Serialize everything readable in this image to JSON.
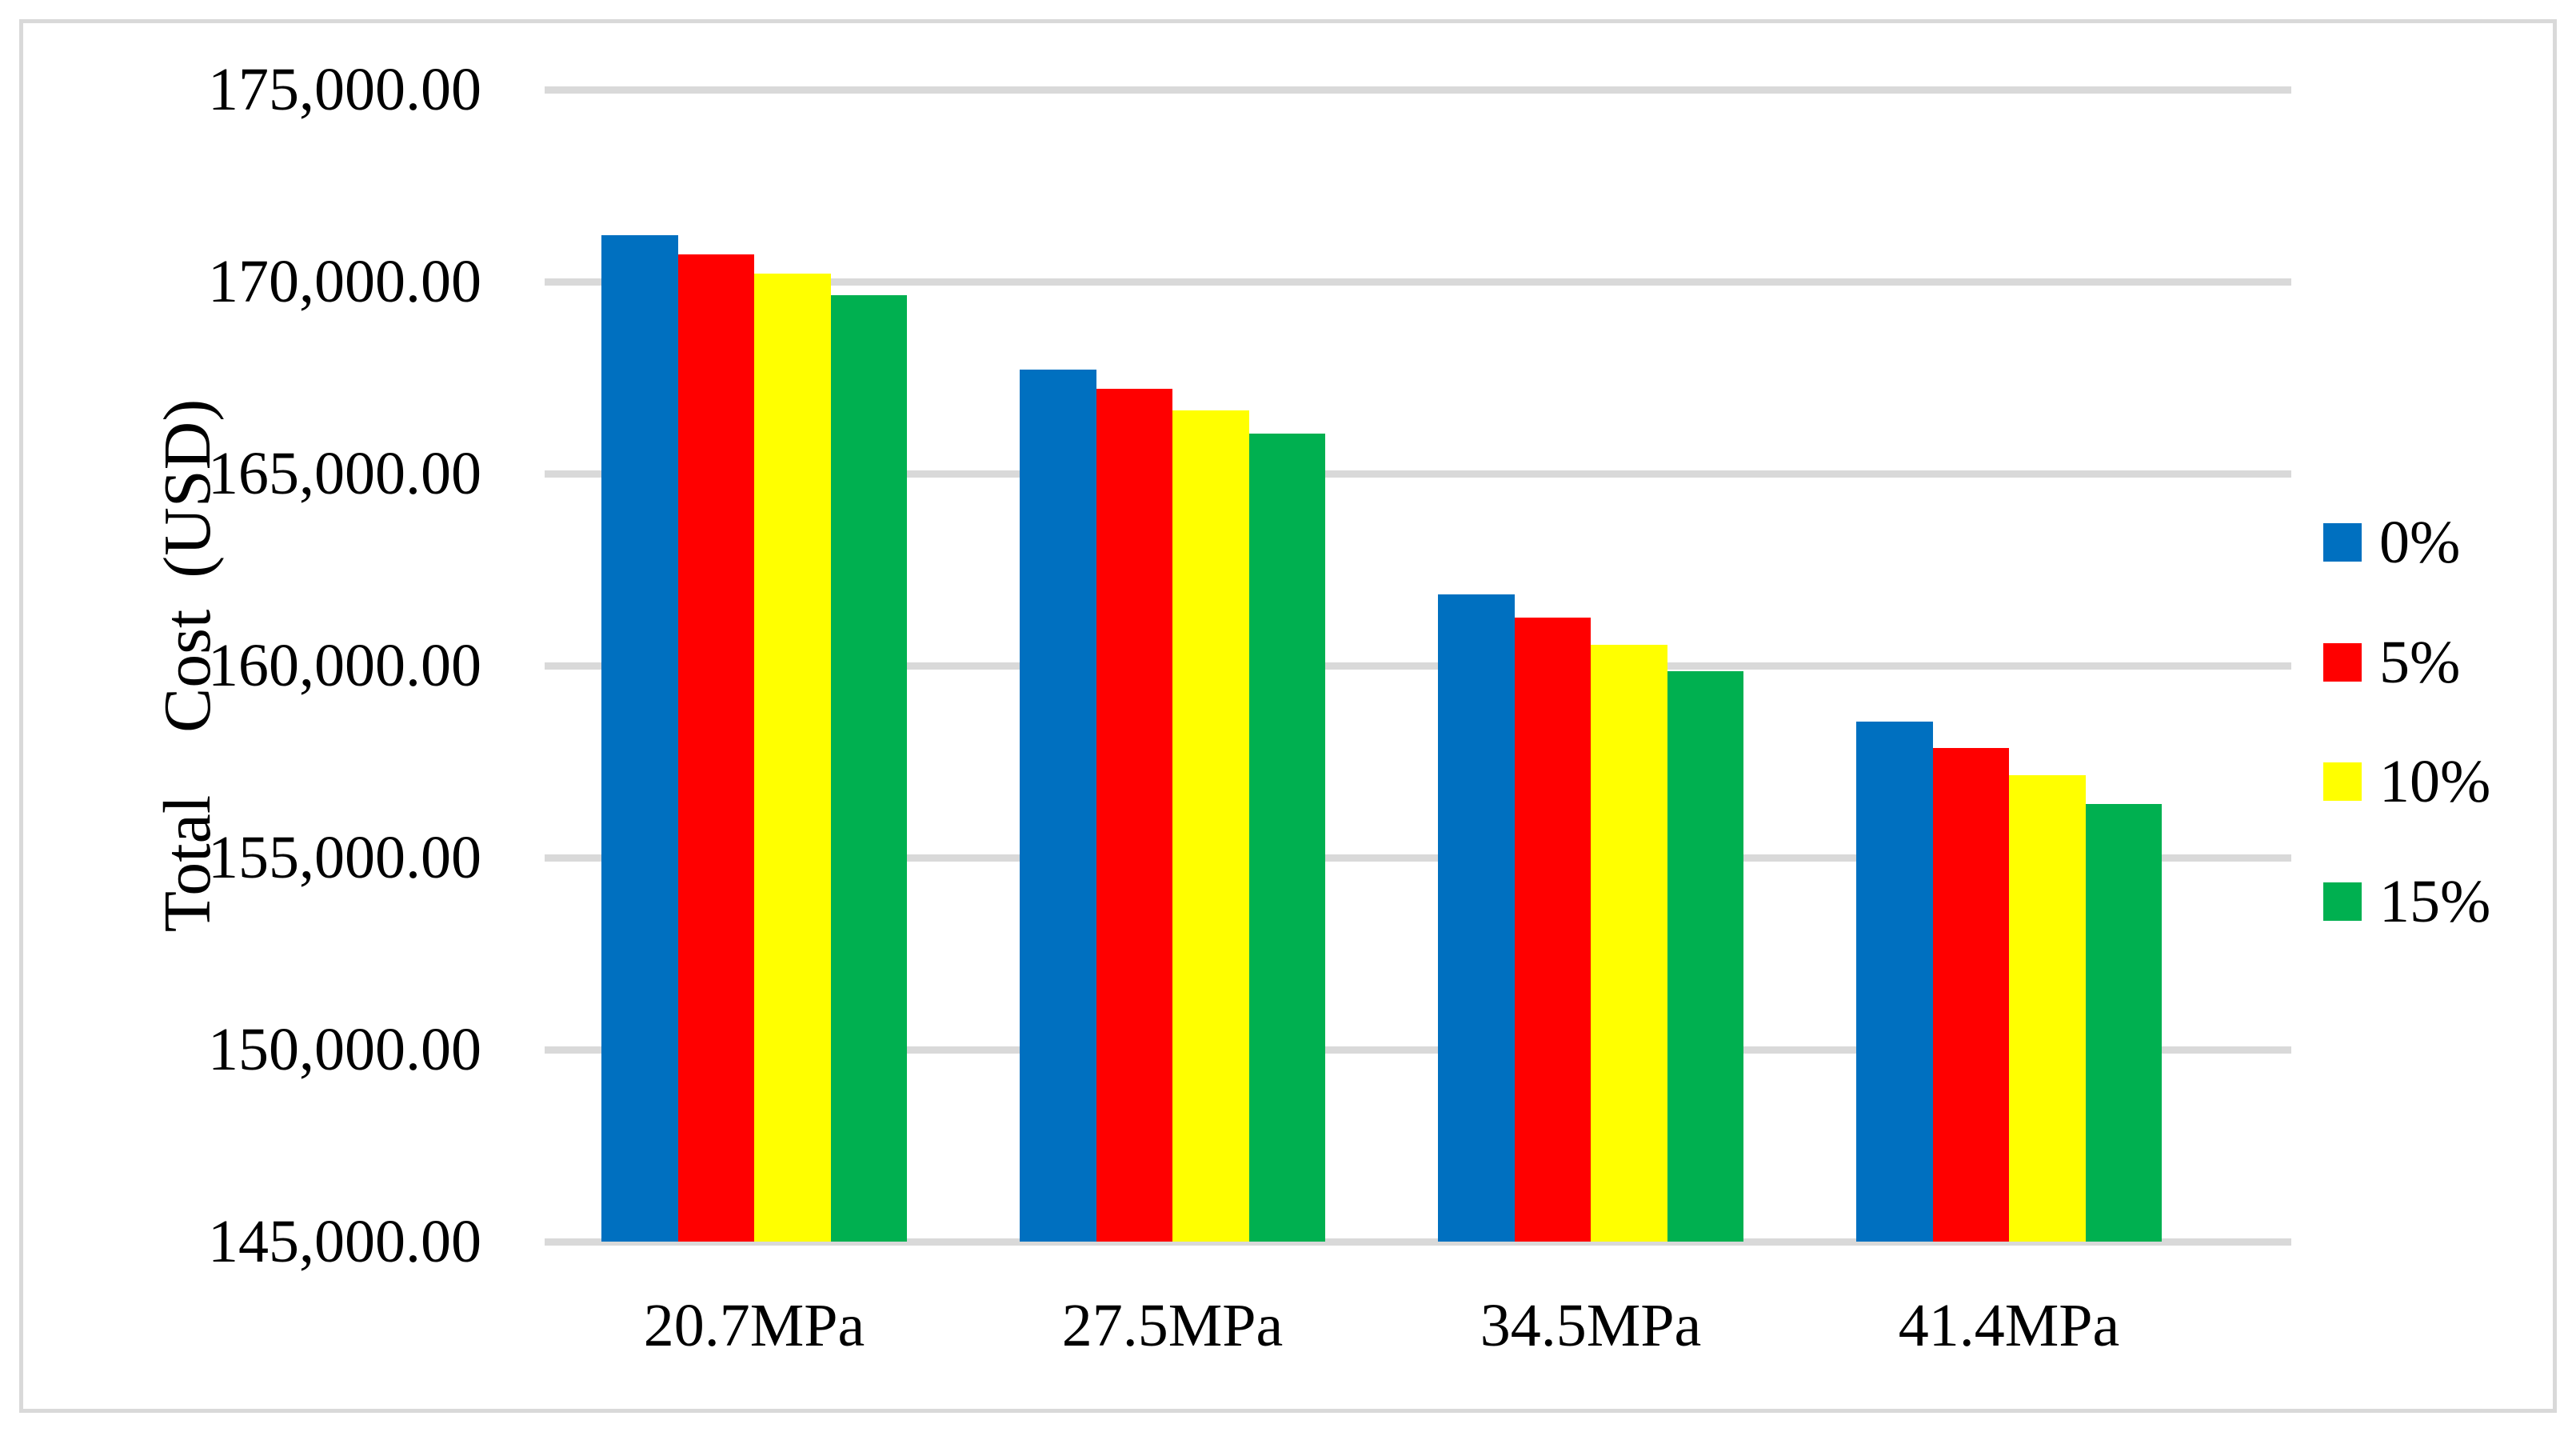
{
  "figure": {
    "kind": "grouped-bar-chart-figure",
    "background": "#ffffff"
  },
  "colors": {
    "grid": "#d9d9d9",
    "frame": "#d9d9d9",
    "text": "#000000",
    "background": "#ffffff"
  },
  "y_axis": {
    "title": "Total  Cost (USD)",
    "tick_labels": [
      "175,000.00",
      "170,000.00",
      "165,000.00",
      "160,000.00",
      "155,000.00",
      "150,000.00",
      "145,000.00"
    ],
    "tick_values": [
      175000,
      170000,
      165000,
      160000,
      155000,
      150000,
      145000
    ]
  },
  "x_axis": {
    "categories": [
      "20.7MPa",
      "27.5MPa",
      "34.5MPa",
      "41.4MPa"
    ]
  },
  "legend": {
    "position": "right",
    "entries": [
      {
        "label": "0%",
        "color": "#0070c0"
      },
      {
        "label": "5%",
        "color": "#ff0000"
      },
      {
        "label": "10%",
        "color": "#ffff00"
      },
      {
        "label": "15%",
        "color": "#00b050"
      }
    ]
  },
  "chart_data": {
    "type": "bar",
    "title": "",
    "xlabel": "",
    "ylabel": "Total  Cost (USD)",
    "categories": [
      "20.7MPa",
      "27.5MPa",
      "34.5MPa",
      "41.4MPa"
    ],
    "series": [
      {
        "name": "0%",
        "color": "#0070c0",
        "values": [
          171200,
          167700,
          161850,
          158550
        ]
      },
      {
        "name": "5%",
        "color": "#ff0000",
        "values": [
          170700,
          167200,
          161250,
          157850
        ]
      },
      {
        "name": "10%",
        "color": "#ffff00",
        "values": [
          170200,
          166650,
          160550,
          157150
        ]
      },
      {
        "name": "15%",
        "color": "#00b050",
        "values": [
          169650,
          166050,
          159850,
          156400
        ]
      }
    ],
    "ylim": [
      145000,
      175000
    ],
    "ytick_step": 5000,
    "ytick_labels": [
      "175,000.00",
      "170,000.00",
      "165,000.00",
      "160,000.00",
      "155,000.00",
      "150,000.00",
      "145,000.00"
    ],
    "grid": true,
    "legend_position": "right"
  }
}
